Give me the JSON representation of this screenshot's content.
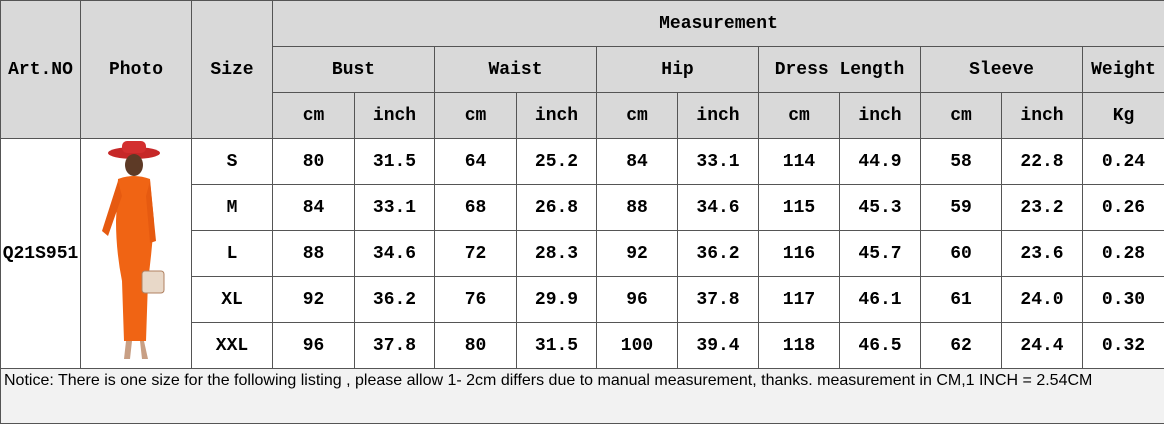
{
  "table": {
    "headers": {
      "art_no": "Art.NO",
      "photo": "Photo",
      "size": "Size",
      "measurement": "Measurement",
      "groups": [
        "Bust",
        "Waist",
        "Hip",
        "Dress Length",
        "Sleeve",
        "Weight"
      ],
      "units": [
        "cm",
        "inch",
        "cm",
        "inch",
        "cm",
        "inch",
        "cm",
        "inch",
        "cm",
        "inch",
        "Kg"
      ]
    },
    "art_no": "Q21S951",
    "rows": [
      [
        "S",
        "80",
        "31.5",
        "64",
        "25.2",
        "84",
        "33.1",
        "114",
        "44.9",
        "58",
        "22.8",
        "0.24"
      ],
      [
        "M",
        "84",
        "33.1",
        "68",
        "26.8",
        "88",
        "34.6",
        "115",
        "45.3",
        "59",
        "23.2",
        "0.26"
      ],
      [
        "L",
        "88",
        "34.6",
        "72",
        "28.3",
        "92",
        "36.2",
        "116",
        "45.7",
        "60",
        "23.6",
        "0.28"
      ],
      [
        "XL",
        "92",
        "36.2",
        "76",
        "29.9",
        "96",
        "37.8",
        "117",
        "46.1",
        "61",
        "24.0",
        "0.30"
      ],
      [
        "XXL",
        "96",
        "37.8",
        "80",
        "31.5",
        "100",
        "39.4",
        "118",
        "46.5",
        "62",
        "24.4",
        "0.32"
      ]
    ]
  },
  "notice": "Notice: There is one size for the following listing , please allow 1- 2cm differs due to manual measurement, thanks.  measurement in CM,1 INCH = 2.54CM"
}
